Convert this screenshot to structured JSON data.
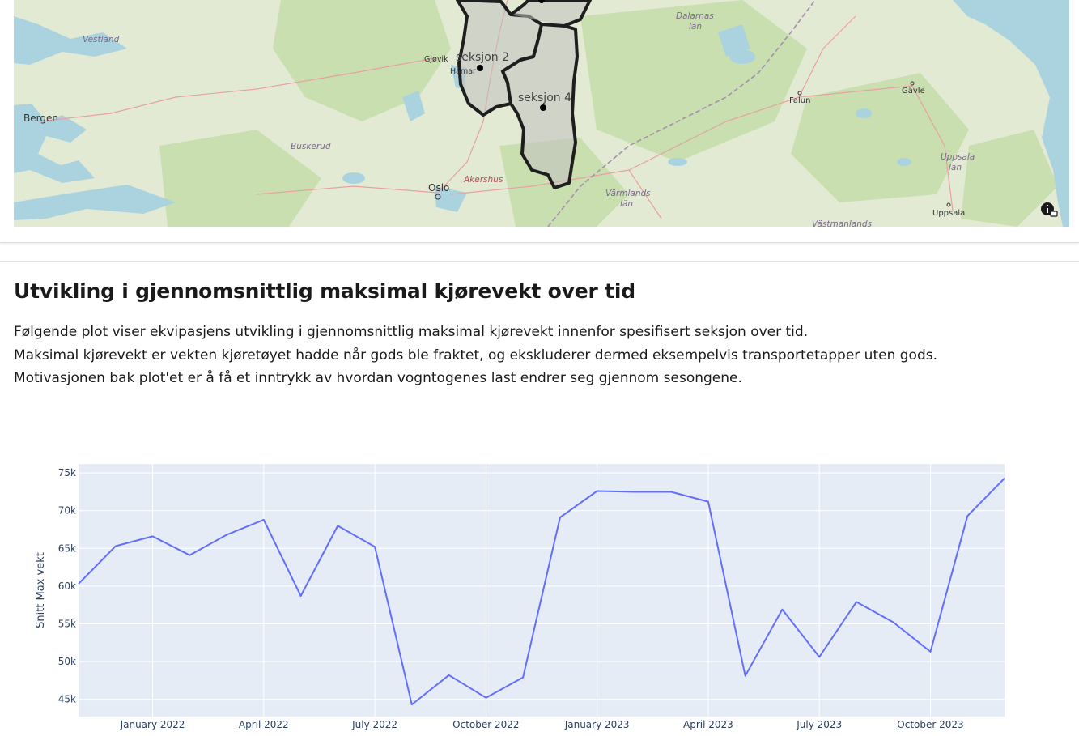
{
  "map": {
    "sections": [
      "seksjon 2",
      "seksjon 4"
    ],
    "places": {
      "vestland": "Vestland",
      "bergen": "Bergen",
      "buskerud": "Buskerud",
      "oslo": "Oslo",
      "akershus": "Akershus",
      "gjovik": "Gjøvik",
      "hamar": "Hamar",
      "dalarnas_1": "Dalarnas",
      "dalarnas_2": "län",
      "varmlands_1": "Värmlands",
      "varmlands_2": "län",
      "falun": "Falun",
      "gavle": "Gävle",
      "uppsala_lan_1": "Uppsala",
      "uppsala_lan_2": "län",
      "uppsala": "Uppsala",
      "vastmanlands": "Västmanlands"
    },
    "colors": {
      "land": "#dfe8cf",
      "forest": "#c9dfb0",
      "water": "#aad3df",
      "polygon_fill": "#bfbfbf",
      "polygon_stroke": "#1e1e1e"
    },
    "info_icon": "info-circle-icon"
  },
  "section": {
    "title": "Utvikling i gjennomsnittlig maksimal kjørevekt over tid",
    "paragraphs": [
      "Følgende plot viser ekvipasjens utvikling i gjennomsnittlig maksimal kjørevekt innenfor spesifisert seksjon over tid.",
      "Maksimal kjørevekt er vekten kjøretøyet hadde når gods ble fraktet, og ekskluderer dermed eksempelvis transportetapper uten gods.",
      "Motivasjonen bak plot'et er å få et inntrykk av hvordan vogntogenes last endrer seg gjennom sesongene."
    ]
  },
  "chart_data": {
    "type": "line",
    "title": "",
    "xlabel": "",
    "ylabel": "Snitt Max vekt",
    "x": [
      "2021-11",
      "2021-12",
      "2022-01",
      "2022-02",
      "2022-03",
      "2022-04",
      "2022-05",
      "2022-06",
      "2022-07",
      "2022-08",
      "2022-09",
      "2022-10",
      "2022-11",
      "2022-12",
      "2023-01",
      "2023-02",
      "2023-03",
      "2023-04",
      "2023-05",
      "2023-06",
      "2023-07",
      "2023-08",
      "2023-09",
      "2023-10",
      "2023-11",
      "2023-12"
    ],
    "series": [
      {
        "values": [
          60300,
          65300,
          66600,
          64100,
          66800,
          68800,
          58700,
          68000,
          65200,
          44300,
          48200,
          45200,
          47900,
          69100,
          72600,
          72500,
          72500,
          71200,
          48100,
          56900,
          50600,
          57900,
          55200,
          51300,
          69300,
          74300
        ]
      }
    ],
    "x_ticks": [
      "January 2022",
      "April 2022",
      "July 2022",
      "October 2022",
      "January 2023",
      "April 2023",
      "July 2023",
      "October 2023"
    ],
    "y_ticks": [
      "45k",
      "50k",
      "55k",
      "60k",
      "65k",
      "70k",
      "75k"
    ],
    "y_tick_values": [
      45000,
      50000,
      55000,
      60000,
      65000,
      70000,
      75000
    ],
    "ylim": [
      42700,
      76200
    ],
    "grid": true,
    "colors": {
      "line": "#636efa",
      "plot_bg": "#e5ecf6",
      "grid": "#ffffff"
    }
  }
}
